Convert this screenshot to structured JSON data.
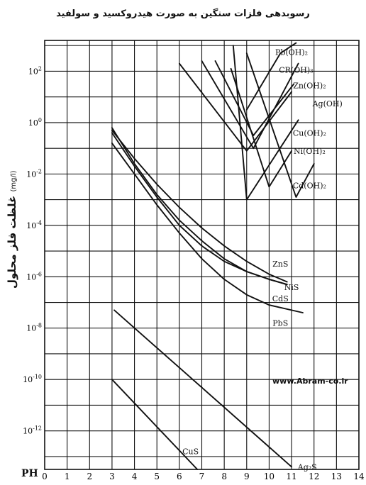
{
  "chart_data": {
    "type": "line",
    "title": "رسوبدهی فلزات سنگین به صورت هیدروکسید و سولفید",
    "ylabel": "غلظت فلز محلول",
    "ylabel_unit": "(mg/l)",
    "xlabel": "PH",
    "watermark": "www.Abram-co.ir",
    "ylog": true,
    "xlim": [
      0,
      14
    ],
    "ylim_log10": [
      -13.5,
      3.2
    ],
    "grid": true,
    "x_ticks": [
      "0",
      "1",
      "2",
      "3",
      "4",
      "5",
      "6",
      "7",
      "8",
      "9",
      "10",
      "11",
      "12",
      "13",
      "14"
    ],
    "y_ticks": [
      {
        "exp": 2,
        "base": "10",
        "sup": "2"
      },
      {
        "exp": 0,
        "base": "10",
        "sup": "0"
      },
      {
        "exp": -2,
        "base": "10",
        "sup": "-2"
      },
      {
        "exp": -4,
        "base": "10",
        "sup": "-4"
      },
      {
        "exp": -6,
        "base": "10",
        "sup": "-6"
      },
      {
        "exp": -8,
        "base": "10",
        "sup": "-8"
      },
      {
        "exp": -10,
        "base": "10",
        "sup": "-10"
      },
      {
        "exp": -12,
        "base": "10",
        "sup": "-12"
      }
    ],
    "series": [
      {
        "name": "Pb(OH)2",
        "label": "Pb(OH)₂",
        "x": [
          9.0,
          10.5,
          11.2
        ],
        "log10_y": [
          0.5,
          2.7,
          3.1
        ]
      },
      {
        "name": "CR(OH)3",
        "label": "CR(OH)₃",
        "x": [
          7.0,
          9.3,
          11.3
        ],
        "log10_y": [
          2.4,
          -1.0,
          2.3
        ]
      },
      {
        "name": "Zn(OH)2",
        "label": "Zn(OH)₂",
        "x": [
          7.6,
          9.3,
          11.1
        ],
        "log10_y": [
          2.4,
          -0.5,
          1.5
        ]
      },
      {
        "name": "Ag(OH)",
        "label": "Ag(OH)",
        "x": [
          6.0,
          9.0,
          11.0
        ],
        "log10_y": [
          2.3,
          -1.1,
          1.2
        ]
      },
      {
        "name": "Cu(OH)2",
        "label": "Cu(OH)₂",
        "x": [
          8.4,
          9.0,
          11.3
        ],
        "log10_y": [
          3.0,
          -3.0,
          0.1
        ]
      },
      {
        "name": "Ni(OH)2",
        "label": "Ni(OH)₂",
        "x": [
          8.3,
          10.0,
          11.0
        ],
        "log10_y": [
          2.1,
          -2.5,
          -1.1
        ]
      },
      {
        "name": "Cd(OH)2",
        "label": "Cd(OH)₂",
        "x": [
          9.0,
          11.2,
          12.0
        ],
        "log10_y": [
          2.7,
          -2.9,
          -1.6
        ]
      },
      {
        "name": "ZnS",
        "label": "ZnS",
        "x": [
          3.0,
          4.0,
          5.0,
          6.0,
          7.0,
          8.0,
          9.0,
          10.0,
          10.8
        ],
        "log10_y": [
          -0.3,
          -1.4,
          -2.4,
          -3.3,
          -4.1,
          -4.8,
          -5.4,
          -5.9,
          -6.2
        ]
      },
      {
        "name": "NiS",
        "label": "NiS",
        "x": [
          3.0,
          4.0,
          5.0,
          6.0,
          7.0,
          8.0,
          9.0,
          10.0,
          10.8
        ],
        "log10_y": [
          -0.2,
          -1.6,
          -2.8,
          -3.8,
          -4.6,
          -5.3,
          -5.8,
          -6.1,
          -6.3
        ]
      },
      {
        "name": "CdS",
        "label": "CdS",
        "x": [
          3.0,
          4.0,
          5.0,
          6.0,
          7.0,
          8.0,
          9.0,
          10.0,
          10.8
        ],
        "log10_y": [
          -0.4,
          -1.7,
          -2.9,
          -4.0,
          -4.8,
          -5.4,
          -5.8,
          -6.1,
          -6.3
        ]
      },
      {
        "name": "PbS",
        "label": "PbS",
        "x": [
          3.0,
          4.0,
          5.0,
          6.0,
          7.0,
          8.0,
          9.0,
          10.0,
          11.5
        ],
        "log10_y": [
          -0.8,
          -2.0,
          -3.2,
          -4.3,
          -5.3,
          -6.1,
          -6.7,
          -7.1,
          -7.4
        ]
      },
      {
        "name": "CuS",
        "label": "CuS",
        "x": [
          3.0,
          6.8
        ],
        "log10_y": [
          -10.0,
          -13.5
        ]
      },
      {
        "name": "Ag2S",
        "label": "Ag₂S",
        "x": [
          3.1,
          11.0
        ],
        "log10_y": [
          -7.3,
          -13.4
        ]
      }
    ]
  }
}
